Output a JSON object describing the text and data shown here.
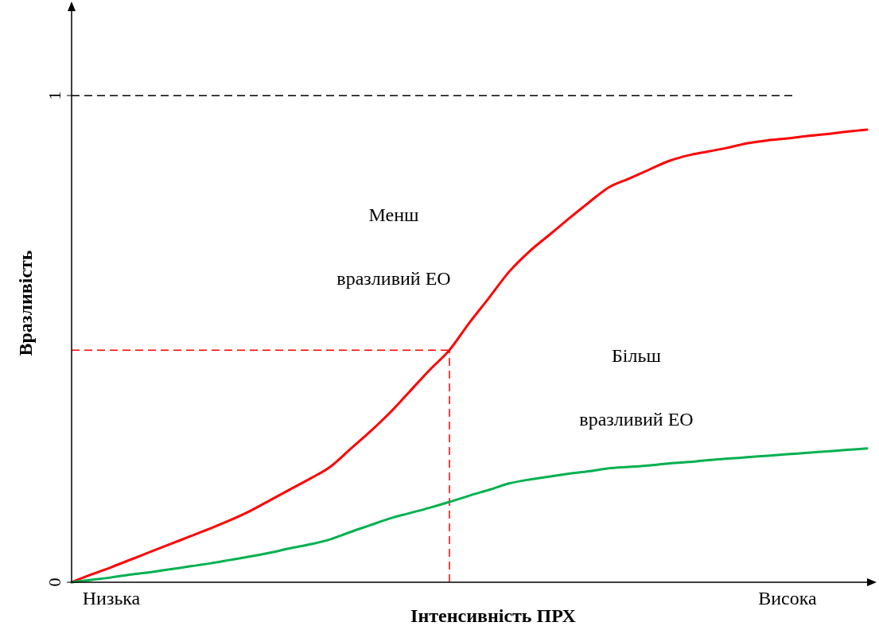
{
  "chart_data": {
    "type": "line",
    "xlabel": "Інтенсивність ПРХ",
    "ylabel": "Вразливість",
    "categories": [
      null,
      null,
      "Низька",
      null,
      null,
      null,
      null,
      null,
      null,
      null,
      null,
      null,
      null,
      null,
      null,
      null,
      null,
      null,
      null,
      null,
      null,
      null,
      null,
      null,
      null,
      null,
      null,
      null,
      null,
      null,
      null,
      null,
      null,
      null,
      null,
      null,
      "Висока",
      null,
      null,
      null,
      null
    ],
    "ylim": [
      0,
      1.18
    ],
    "yticks": [
      0,
      1
    ],
    "series": [
      {
        "color": "#ff0000",
        "values": [
          0,
          0.016,
          0.031,
          0.047,
          0.063,
          0.079,
          0.095,
          0.111,
          0.128,
          0.147,
          0.169,
          0.191,
          0.213,
          0.237,
          0.273,
          0.309,
          0.348,
          0.392,
          0.436,
          0.477,
          0.533,
          0.585,
          0.638,
          0.679,
          0.713,
          0.747,
          0.78,
          0.811,
          0.829,
          0.847,
          0.865,
          0.877,
          0.885,
          0.893,
          0.902,
          0.908,
          0.912,
          0.917,
          0.921,
          0.926,
          0.93
        ]
      },
      {
        "color": "#00b050",
        "values": [
          0,
          0.005,
          0.01,
          0.016,
          0.021,
          0.027,
          0.033,
          0.039,
          0.046,
          0.053,
          0.061,
          0.07,
          0.078,
          0.088,
          0.103,
          0.117,
          0.131,
          0.142,
          0.153,
          0.165,
          0.178,
          0.19,
          0.203,
          0.211,
          0.217,
          0.223,
          0.228,
          0.234,
          0.237,
          0.24,
          0.244,
          0.247,
          0.251,
          0.254,
          0.257,
          0.26,
          0.263,
          0.266,
          0.269,
          0.272,
          0.275
        ]
      }
    ],
    "ref_lines": [
      {
        "axis": "y",
        "value": 1,
        "color": "#000000",
        "line_style": "dashed"
      },
      {
        "axis": "y",
        "value": 0.477,
        "color": "#ff0000",
        "line_style": "dashed"
      }
    ],
    "annotations": [
      "Менш",
      "вразливий ЕО",
      "Більш",
      "вразливий ЕО"
    ],
    "grid": false,
    "line_style": "solid"
  }
}
